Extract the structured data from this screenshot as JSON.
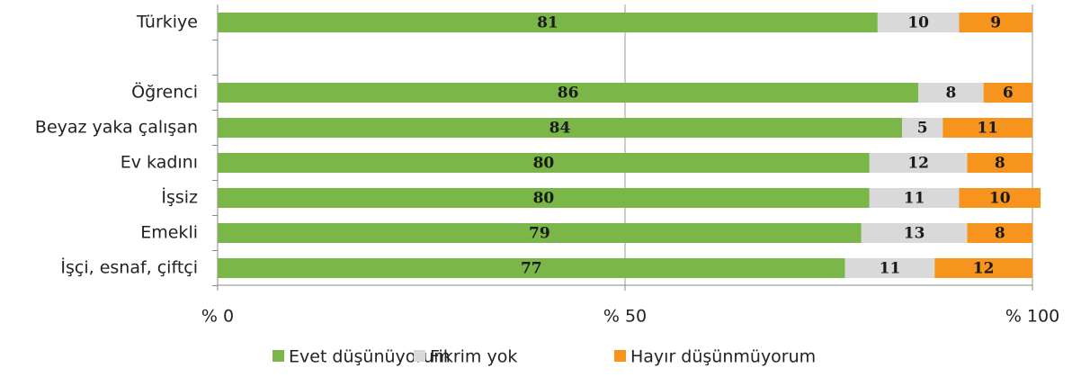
{
  "chart_data": {
    "type": "stacked_barh",
    "categories": [
      "Türkiye",
      null,
      "Öğrenci",
      "Beyaz yaka çalışan",
      "Ev kadını",
      "İşsiz",
      "Emekli",
      "İşçi, esnaf, çiftçi"
    ],
    "series": [
      {
        "name": "Evet düşünüyorum",
        "color": "#7ab648",
        "values": [
          81,
          null,
          86,
          84,
          80,
          80,
          79,
          77
        ]
      },
      {
        "name": "Fikrim yok",
        "color": "#d9d9d9",
        "values": [
          10,
          null,
          8,
          5,
          12,
          11,
          13,
          11
        ]
      },
      {
        "name": "Hayır düşünmüyorum",
        "color": "#f7941d",
        "values": [
          9,
          null,
          6,
          11,
          8,
          10,
          8,
          12
        ]
      }
    ],
    "xlim": [
      0,
      100
    ],
    "xticks": [
      {
        "value": 0,
        "label": "% 0"
      },
      {
        "value": 50,
        "label": "% 50"
      },
      {
        "value": 100,
        "label": "% 100"
      }
    ],
    "grid": true
  }
}
